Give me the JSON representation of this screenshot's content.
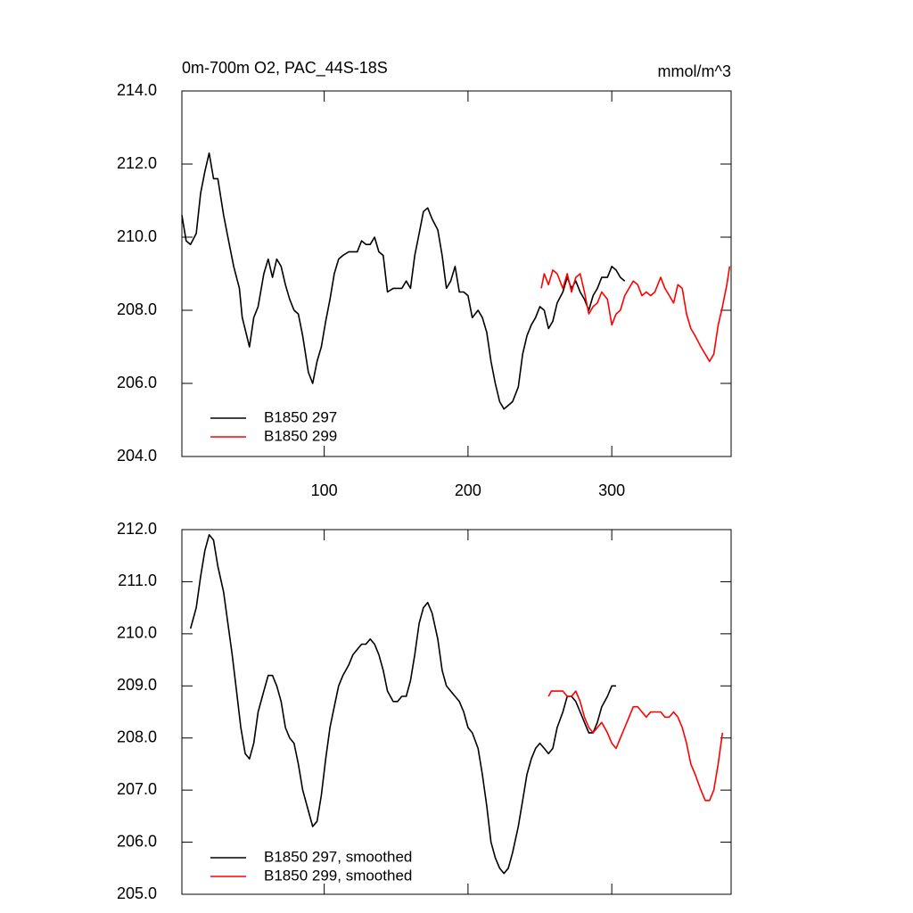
{
  "chart_data": [
    {
      "type": "line",
      "title": "0m-700m O2, PAC_44S-18S",
      "units": "mmol/m^3",
      "xlim": [
        1,
        383
      ],
      "xticks": [
        100,
        200,
        300
      ],
      "ylim": [
        204,
        214
      ],
      "yticks": [
        {
          "value": 204,
          "label": "204.0"
        },
        {
          "value": 206,
          "label": "206.0"
        },
        {
          "value": 208,
          "label": "208.0"
        },
        {
          "value": 210,
          "label": "210.0"
        },
        {
          "value": 212,
          "label": "212.0"
        },
        {
          "value": 214,
          "label": "214.0"
        }
      ],
      "legend": "lower left",
      "series": [
        {
          "name": "B1850 297",
          "color": "#000000",
          "x": [
            1,
            4,
            7,
            11,
            14,
            17,
            20,
            23,
            26,
            30,
            33,
            37,
            41,
            43,
            48,
            51,
            54,
            58,
            61,
            64,
            67,
            70,
            73,
            76,
            79,
            82,
            85,
            89,
            92,
            95,
            98,
            101,
            104,
            107,
            110,
            113,
            117,
            120,
            123,
            126,
            129,
            132,
            135,
            138,
            141,
            144,
            148,
            151,
            154,
            157,
            160,
            163,
            166,
            169,
            172,
            175,
            179,
            182,
            185,
            188,
            191,
            194,
            197,
            200,
            203,
            207,
            210,
            213,
            216,
            219,
            222,
            225,
            228,
            231,
            235,
            238,
            241,
            244,
            247,
            250,
            253,
            256,
            259,
            262,
            266,
            269,
            272,
            275,
            278,
            281,
            284,
            287,
            290,
            293,
            297,
            300,
            303,
            306,
            309
          ],
          "values": [
            210.6,
            209.9,
            209.8,
            210.1,
            211.2,
            211.8,
            212.3,
            211.6,
            211.6,
            210.6,
            210.0,
            209.2,
            208.6,
            207.8,
            207.0,
            207.8,
            208.1,
            209.0,
            209.4,
            208.9,
            209.4,
            209.2,
            208.7,
            208.3,
            208.0,
            207.9,
            207.3,
            206.3,
            206.0,
            206.6,
            207.0,
            207.7,
            208.3,
            209.0,
            209.4,
            209.5,
            209.6,
            209.6,
            209.6,
            209.9,
            209.8,
            209.8,
            210.0,
            209.6,
            209.5,
            208.5,
            208.6,
            208.6,
            208.6,
            208.8,
            208.6,
            209.5,
            210.1,
            210.7,
            210.8,
            210.5,
            210.2,
            209.5,
            208.6,
            208.8,
            209.2,
            208.5,
            208.5,
            208.4,
            207.8,
            208.0,
            207.8,
            207.4,
            206.6,
            206.0,
            205.5,
            205.3,
            205.4,
            205.5,
            205.9,
            206.8,
            207.3,
            207.6,
            207.8,
            208.1,
            208.0,
            207.5,
            207.7,
            208.2,
            208.5,
            208.9,
            208.6,
            208.8,
            208.5,
            208.3,
            208.0,
            208.4,
            208.6,
            208.9,
            208.9,
            209.2,
            209.1,
            208.9,
            208.8
          ]
        },
        {
          "name": "B1850 299",
          "color": "#ff0000",
          "x": [
            251,
            253,
            256,
            259,
            262,
            266,
            269,
            272,
            275,
            278,
            281,
            284,
            287,
            290,
            293,
            297,
            300,
            303,
            306,
            309,
            312,
            315,
            318,
            321,
            324,
            327,
            330,
            334,
            337,
            340,
            343,
            346,
            349,
            352,
            355,
            358,
            362,
            365,
            368,
            371,
            374,
            377,
            380,
            382
          ],
          "values": [
            208.6,
            209.0,
            208.7,
            209.1,
            209.0,
            208.6,
            209.0,
            208.5,
            208.9,
            209.0,
            208.5,
            207.9,
            208.1,
            208.2,
            208.5,
            208.3,
            207.6,
            207.9,
            208.0,
            208.4,
            208.6,
            208.8,
            208.7,
            208.4,
            208.5,
            208.4,
            208.5,
            208.9,
            208.6,
            208.4,
            208.2,
            208.7,
            208.6,
            207.9,
            207.5,
            207.3,
            207.0,
            206.8,
            206.6,
            206.8,
            207.6,
            208.1,
            208.7,
            209.2
          ]
        }
      ]
    },
    {
      "type": "line",
      "xlim": [
        1,
        383
      ],
      "ylim": [
        205,
        212
      ],
      "yticks": [
        {
          "value": 205,
          "label": "205.0"
        },
        {
          "value": 206,
          "label": "206.0"
        },
        {
          "value": 207,
          "label": "207.0"
        },
        {
          "value": 208,
          "label": "208.0"
        },
        {
          "value": 209,
          "label": "209.0"
        },
        {
          "value": 210,
          "label": "210.0"
        },
        {
          "value": 211,
          "label": "211.0"
        },
        {
          "value": 212,
          "label": "212.0"
        }
      ],
      "legend": "lower left",
      "series": [
        {
          "name": "B1850 297, smoothed",
          "color": "#000000",
          "x": [
            7,
            11,
            14,
            17,
            20,
            23,
            26,
            30,
            33,
            36,
            39,
            42,
            45,
            48,
            51,
            54,
            58,
            61,
            64,
            67,
            70,
            73,
            76,
            79,
            82,
            85,
            89,
            92,
            95,
            98,
            101,
            104,
            107,
            110,
            113,
            117,
            120,
            123,
            126,
            129,
            132,
            135,
            138,
            141,
            144,
            148,
            151,
            154,
            157,
            160,
            163,
            166,
            169,
            172,
            175,
            179,
            182,
            185,
            188,
            191,
            194,
            197,
            200,
            203,
            207,
            210,
            213,
            216,
            219,
            222,
            225,
            228,
            231,
            235,
            238,
            241,
            244,
            247,
            250,
            253,
            256,
            259,
            262,
            266,
            269,
            272,
            275,
            278,
            281,
            284,
            287,
            290,
            293,
            297,
            300,
            303
          ],
          "values": [
            210.1,
            210.5,
            211.1,
            211.6,
            211.9,
            211.8,
            211.3,
            210.8,
            210.2,
            209.6,
            208.9,
            208.2,
            207.7,
            207.6,
            207.9,
            208.5,
            208.9,
            209.2,
            209.2,
            209.0,
            208.7,
            208.2,
            208.0,
            207.9,
            207.5,
            207.0,
            206.6,
            206.3,
            206.4,
            206.9,
            207.6,
            208.2,
            208.6,
            209.0,
            209.2,
            209.4,
            209.6,
            209.7,
            209.8,
            209.8,
            209.9,
            209.8,
            209.6,
            209.3,
            208.9,
            208.7,
            208.7,
            208.8,
            208.8,
            209.1,
            209.6,
            210.2,
            210.5,
            210.6,
            210.4,
            209.9,
            209.3,
            209.0,
            208.9,
            208.8,
            208.7,
            208.5,
            208.2,
            208.1,
            207.8,
            207.3,
            206.7,
            206.0,
            205.7,
            205.5,
            205.4,
            205.5,
            205.8,
            206.3,
            206.8,
            207.3,
            207.6,
            207.8,
            207.9,
            207.8,
            207.7,
            207.8,
            208.2,
            208.5,
            208.8,
            208.8,
            208.7,
            208.5,
            208.3,
            208.1,
            208.1,
            208.3,
            208.6,
            208.8,
            209.0,
            209.0
          ]
        },
        {
          "name": "B1850 299, smoothed",
          "color": "#ff0000",
          "x": [
            256,
            258,
            262,
            266,
            269,
            272,
            275,
            278,
            281,
            284,
            287,
            290,
            293,
            297,
            300,
            303,
            306,
            309,
            312,
            315,
            318,
            321,
            324,
            327,
            330,
            334,
            337,
            340,
            343,
            346,
            349,
            352,
            355,
            358,
            362,
            365,
            368,
            371,
            374,
            377
          ],
          "values": [
            208.8,
            208.9,
            208.9,
            208.9,
            208.8,
            208.8,
            208.9,
            208.7,
            208.4,
            208.2,
            208.1,
            208.2,
            208.3,
            208.1,
            207.9,
            207.8,
            208.0,
            208.2,
            208.4,
            208.6,
            208.6,
            208.5,
            208.4,
            208.5,
            208.5,
            208.5,
            208.4,
            208.4,
            208.5,
            208.4,
            208.2,
            207.9,
            207.5,
            207.3,
            207.0,
            206.8,
            206.8,
            207.0,
            207.5,
            208.1
          ]
        }
      ]
    }
  ]
}
